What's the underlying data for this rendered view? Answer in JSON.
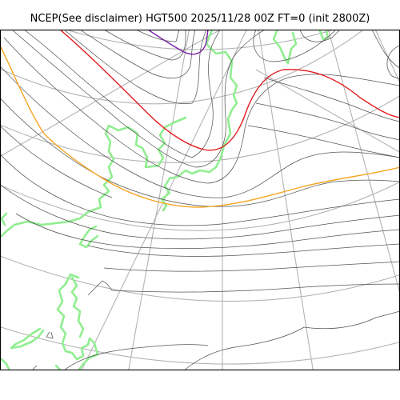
{
  "title": "NCEP(See disclaimer) HGT500 2025/11/28 00Z FT=0 (init 2800Z)",
  "colors": {
    "background": "#ffffff",
    "frame": "#000000",
    "graticule": "#b3b3b3",
    "coastline": "#90ee90",
    "contour": "#555555",
    "contour_red": "#e41a1c",
    "contour_orange": "#f5a623",
    "contour_purple": "#7b1fa2"
  }
}
